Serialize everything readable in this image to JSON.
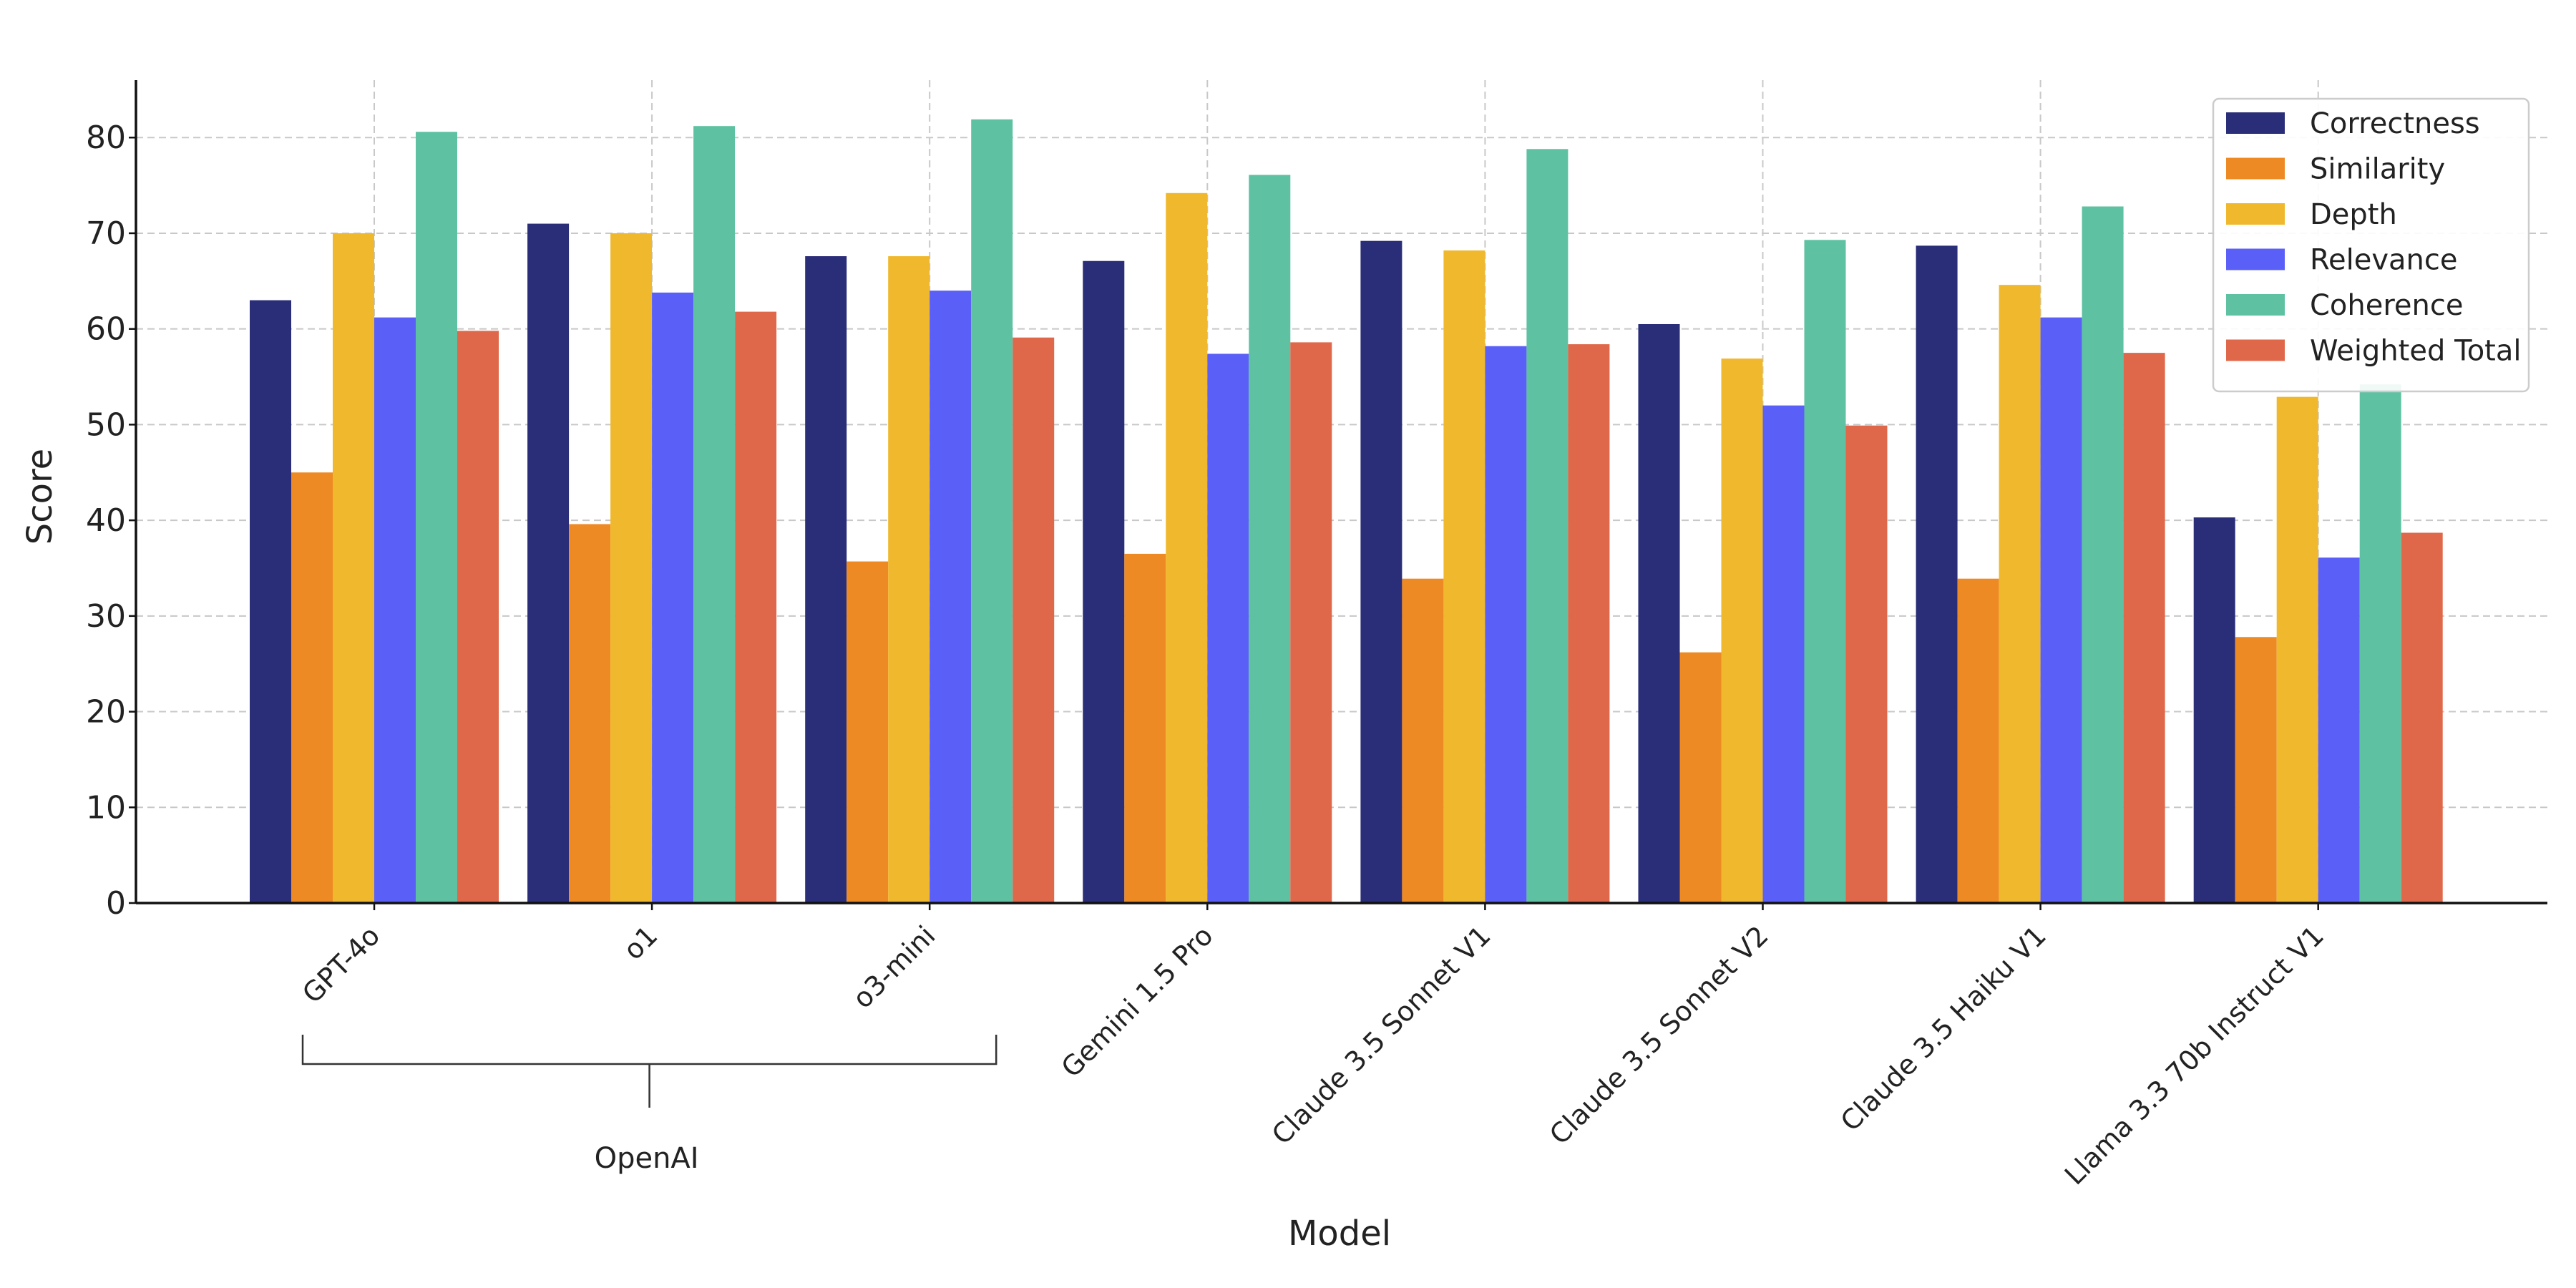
{
  "chart_data": {
    "type": "bar",
    "xlabel": "Model",
    "ylabel": "Score",
    "ylim": [
      0,
      86
    ],
    "yticks": [
      0,
      10,
      20,
      30,
      40,
      50,
      60,
      70,
      80
    ],
    "grid": true,
    "legend_position": "top-right",
    "categories": [
      "GPT-4o",
      "o1",
      "o3-mini",
      "Gemini 1.5 Pro",
      "Claude 3.5 Sonnet V1",
      "Claude 3.5 Sonnet V2",
      "Claude 3.5 Haiku V1",
      "Llama 3.3 70b Instruct V1"
    ],
    "series": [
      {
        "name": "Correctness",
        "color": "#2a2d78",
        "values": [
          63.0,
          71.0,
          67.6,
          67.1,
          69.2,
          60.5,
          68.7,
          40.3
        ]
      },
      {
        "name": "Similarity",
        "color": "#ee8a24",
        "values": [
          45.0,
          39.6,
          35.7,
          36.5,
          33.9,
          26.2,
          33.9,
          27.8
        ]
      },
      {
        "name": "Depth",
        "color": "#f0b82c",
        "values": [
          70.0,
          70.0,
          67.6,
          74.2,
          68.2,
          56.9,
          64.6,
          52.9
        ]
      },
      {
        "name": "Relevance",
        "color": "#5a5ff8",
        "values": [
          61.2,
          63.8,
          64.0,
          57.4,
          58.2,
          52.0,
          61.2,
          36.1
        ]
      },
      {
        "name": "Coherence",
        "color": "#5ec2a2",
        "values": [
          80.6,
          81.2,
          81.9,
          76.1,
          78.8,
          69.3,
          72.8,
          54.2
        ]
      },
      {
        "name": "Weighted Total",
        "color": "#e0684a",
        "values": [
          59.8,
          61.8,
          59.1,
          58.6,
          58.4,
          49.9,
          57.5,
          38.7
        ]
      }
    ],
    "annotations": [
      {
        "text": "OpenAI",
        "group": [
          "GPT-4o",
          "o1",
          "o3-mini"
        ]
      }
    ]
  }
}
